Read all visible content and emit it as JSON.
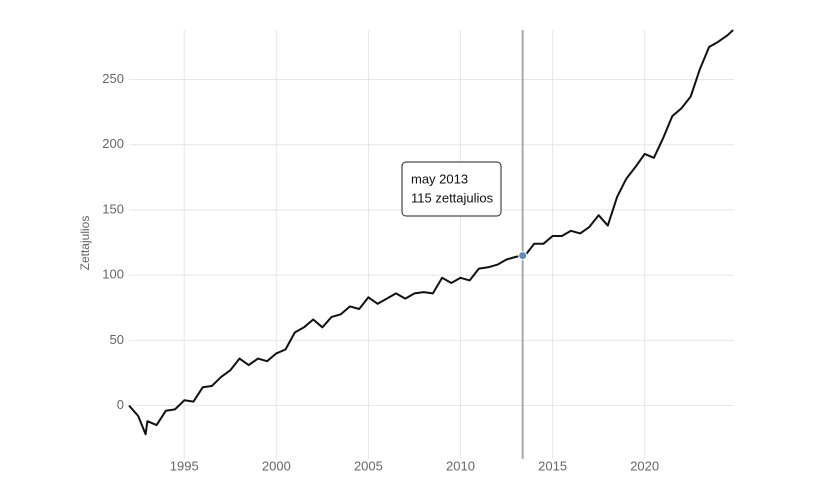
{
  "chart_data": {
    "type": "line",
    "y_label": "Zettajulios",
    "x": [
      1992.0,
      1992.5,
      1992.9,
      1993.0,
      1993.5,
      1994.0,
      1994.5,
      1995.0,
      1995.5,
      1996.0,
      1996.5,
      1997.0,
      1997.5,
      1998.0,
      1998.5,
      1999.0,
      1999.5,
      2000.0,
      2000.5,
      2001.0,
      2001.5,
      2002.0,
      2002.5,
      2003.0,
      2003.5,
      2004.0,
      2004.5,
      2005.0,
      2005.5,
      2006.0,
      2006.5,
      2007.0,
      2007.5,
      2008.0,
      2008.5,
      2009.0,
      2009.5,
      2010.0,
      2010.5,
      2011.0,
      2011.5,
      2012.0,
      2012.5,
      2013.0,
      2013.375,
      2013.5,
      2014.0,
      2014.5,
      2015.0,
      2015.5,
      2016.0,
      2016.5,
      2017.0,
      2017.5,
      2018.0,
      2018.5,
      2019.0,
      2019.5,
      2020.0,
      2020.5,
      2021.0,
      2021.5,
      2022.0,
      2022.5,
      2023.0,
      2023.5,
      2024.0,
      2024.5,
      2024.8
    ],
    "series": [
      {
        "color": "#111111",
        "values": [
          0,
          -8,
          -22,
          -12,
          -15,
          -4,
          -3,
          4,
          3,
          14,
          15,
          22,
          27,
          36,
          31,
          36,
          34,
          40,
          43,
          56,
          60,
          66,
          60,
          68,
          70,
          76,
          74,
          83,
          78,
          82,
          86,
          82,
          86,
          87,
          86,
          98,
          94,
          98,
          96,
          105,
          106,
          108,
          112,
          114,
          115,
          115,
          124,
          124,
          130,
          130,
          134,
          132,
          137,
          146,
          138,
          160,
          174,
          183,
          193,
          190,
          205,
          222,
          228,
          237,
          258,
          275,
          279,
          284,
          288
        ]
      }
    ],
    "xlim": [
      1992.0,
      2024.85
    ],
    "xticks": [
      1995,
      2000,
      2005,
      2010,
      2015,
      2020
    ],
    "ylim": [
      -41,
      288
    ],
    "yticks": [
      0,
      50,
      100,
      150,
      200,
      250
    ],
    "grid": true,
    "hover": {
      "x": 2013.375,
      "value": 115,
      "date_label": "may 2013",
      "value_label": "115 zettajulios",
      "color": "#5b8db8"
    }
  }
}
